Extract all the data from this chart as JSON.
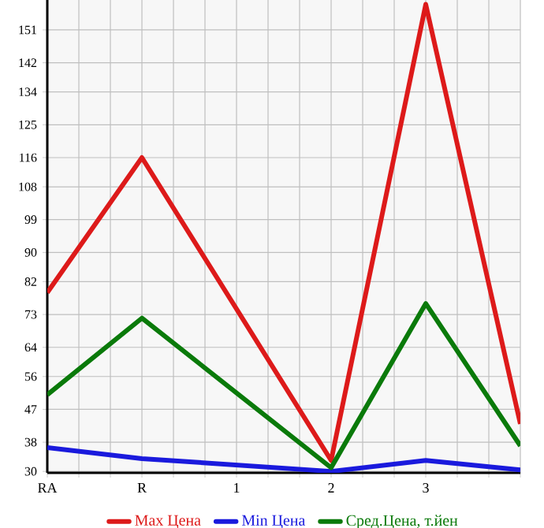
{
  "chart_data": {
    "type": "line",
    "categories": [
      "RA",
      "R",
      "1",
      "2",
      "3",
      null
    ],
    "series": [
      {
        "name": "Max Цена",
        "color": "#dd1a1a",
        "values": [
          79,
          116,
          null,
          33,
          158,
          43
        ]
      },
      {
        "name": "Min Цена",
        "color": "#1a1add",
        "values": [
          36.5,
          33.5,
          null,
          30,
          33,
          30.4
        ]
      },
      {
        "name": "Сред.Цена, т.йен",
        "color": "#0a7a0a",
        "values": [
          51,
          72,
          null,
          31,
          76,
          37
        ]
      }
    ],
    "ylim": [
      29.6,
      159.2
    ],
    "yticks": [
      30,
      38,
      47,
      56,
      64,
      73,
      82,
      90,
      99,
      108,
      116,
      125,
      134,
      142,
      151
    ],
    "grid": true,
    "legend": "bottom"
  }
}
